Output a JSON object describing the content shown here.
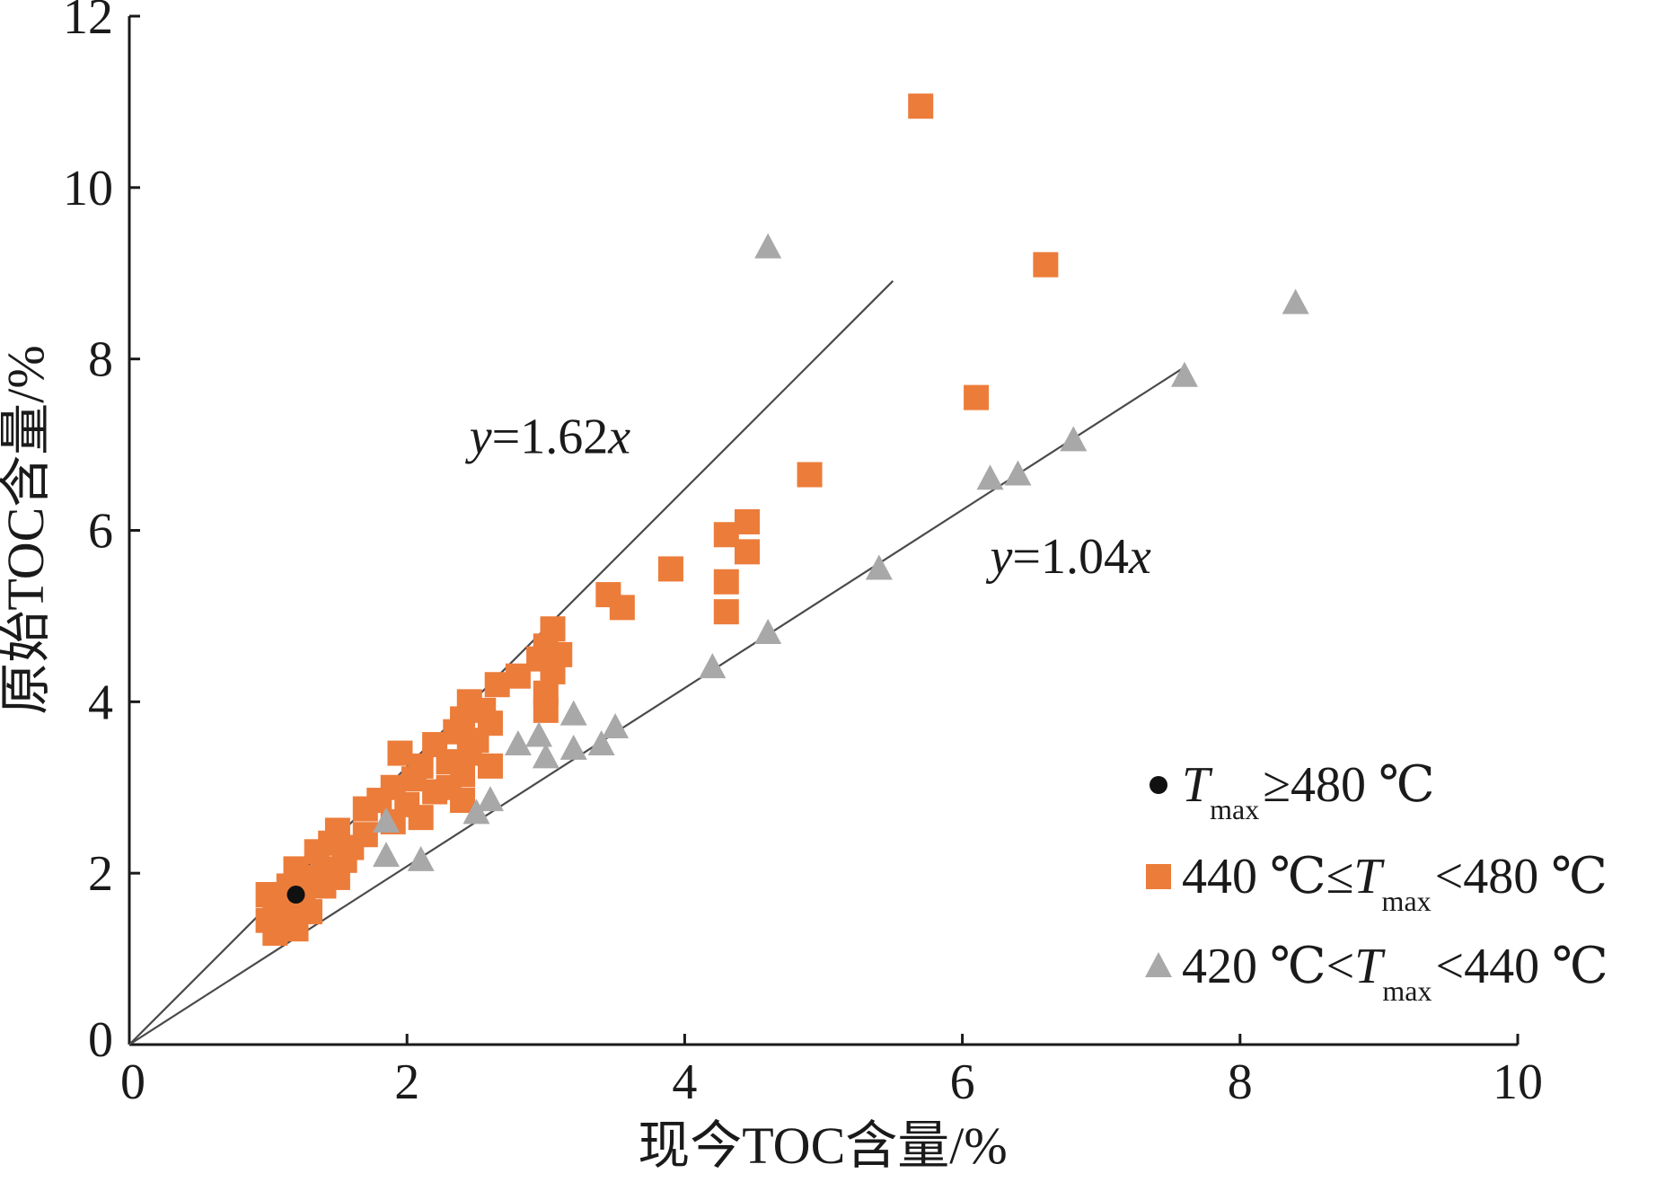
{
  "chart_data": {
    "type": "scatter",
    "xlabel": "现今TOC含量/%",
    "ylabel": "原始TOC含量/%",
    "xlim": [
      0,
      10
    ],
    "ylim": [
      0,
      12
    ],
    "x_ticks": [
      "0",
      "2",
      "4",
      "6",
      "8",
      "10"
    ],
    "y_ticks": [
      "0",
      "2",
      "4",
      "6",
      "8",
      "10",
      "12"
    ],
    "grid": false,
    "legend_position": "bottom-right",
    "fit_lines": [
      {
        "label": "y=1.62x",
        "slope": 1.62,
        "x_range": [
          0,
          5.5
        ]
      },
      {
        "label": "y=1.04x",
        "slope": 1.04,
        "x_range": [
          0,
          7.6
        ]
      }
    ],
    "series": [
      {
        "name": "Tmax≥480 ℃",
        "legend_main": "T",
        "legend_sub": "max",
        "legend_tail": "≥480 ℃",
        "marker": "circle",
        "color": "#111111",
        "points": [
          [
            1.2,
            1.75
          ]
        ]
      },
      {
        "name": "440 ℃≤Tmax<480 ℃",
        "legend_head": "440 ℃≤",
        "legend_main": "T",
        "legend_sub": "max",
        "legend_tail": "<480 ℃",
        "marker": "square",
        "color": "#ec7c3a",
        "points": [
          [
            5.7,
            10.95
          ],
          [
            6.6,
            9.1
          ],
          [
            6.1,
            7.55
          ],
          [
            4.9,
            6.65
          ],
          [
            4.45,
            6.1
          ],
          [
            4.3,
            5.95
          ],
          [
            4.45,
            5.75
          ],
          [
            3.9,
            5.55
          ],
          [
            3.45,
            5.25
          ],
          [
            4.3,
            5.4
          ],
          [
            3.55,
            5.1
          ],
          [
            4.3,
            5.05
          ],
          [
            3.05,
            4.85
          ],
          [
            3.0,
            4.65
          ],
          [
            2.95,
            4.5
          ],
          [
            3.1,
            4.55
          ],
          [
            2.8,
            4.3
          ],
          [
            3.05,
            4.35
          ],
          [
            2.65,
            4.2
          ],
          [
            3.0,
            4.1
          ],
          [
            2.45,
            4.0
          ],
          [
            2.55,
            3.9
          ],
          [
            3.0,
            3.9
          ],
          [
            2.4,
            3.8
          ],
          [
            2.6,
            3.75
          ],
          [
            2.35,
            3.65
          ],
          [
            2.5,
            3.55
          ],
          [
            2.2,
            3.5
          ],
          [
            2.45,
            3.4
          ],
          [
            1.95,
            3.4
          ],
          [
            2.3,
            3.3
          ],
          [
            2.1,
            3.25
          ],
          [
            2.6,
            3.25
          ],
          [
            2.4,
            3.15
          ],
          [
            2.05,
            3.1
          ],
          [
            2.3,
            3.0
          ],
          [
            1.9,
            3.0
          ],
          [
            2.2,
            2.95
          ],
          [
            2.4,
            2.85
          ],
          [
            1.8,
            2.85
          ],
          [
            2.0,
            2.8
          ],
          [
            1.7,
            2.75
          ],
          [
            2.1,
            2.65
          ],
          [
            1.9,
            2.6
          ],
          [
            1.5,
            2.5
          ],
          [
            1.7,
            2.45
          ],
          [
            1.45,
            2.35
          ],
          [
            1.6,
            2.3
          ],
          [
            1.35,
            2.25
          ],
          [
            1.55,
            2.15
          ],
          [
            1.2,
            2.05
          ],
          [
            1.4,
            2.05
          ],
          [
            1.5,
            1.95
          ],
          [
            1.3,
            1.95
          ],
          [
            1.0,
            1.75
          ],
          [
            1.15,
            1.85
          ],
          [
            1.4,
            1.85
          ],
          [
            1.25,
            1.7
          ],
          [
            1.05,
            1.6
          ],
          [
            1.15,
            1.55
          ],
          [
            1.3,
            1.55
          ],
          [
            1.0,
            1.45
          ],
          [
            1.1,
            1.4
          ],
          [
            1.2,
            1.35
          ],
          [
            1.05,
            1.3
          ]
        ]
      },
      {
        "name": "420 ℃<Tmax<440 ℃",
        "legend_head": "420 ℃<",
        "legend_main": "T",
        "legend_sub": "max",
        "legend_tail": "<440 ℃",
        "marker": "triangle",
        "color": "#a8a8a8",
        "points": [
          [
            4.6,
            9.3
          ],
          [
            8.4,
            8.65
          ],
          [
            7.6,
            7.8
          ],
          [
            6.8,
            7.05
          ],
          [
            6.2,
            6.6
          ],
          [
            6.4,
            6.65
          ],
          [
            5.4,
            5.55
          ],
          [
            4.6,
            4.8
          ],
          [
            4.2,
            4.4
          ],
          [
            3.5,
            3.7
          ],
          [
            3.2,
            3.85
          ],
          [
            3.4,
            3.5
          ],
          [
            2.8,
            3.5
          ],
          [
            2.95,
            3.6
          ],
          [
            3.0,
            3.35
          ],
          [
            3.2,
            3.45
          ],
          [
            2.6,
            2.85
          ],
          [
            2.5,
            2.7
          ],
          [
            1.85,
            2.6
          ],
          [
            1.85,
            2.2
          ],
          [
            2.1,
            2.15
          ]
        ]
      }
    ]
  }
}
